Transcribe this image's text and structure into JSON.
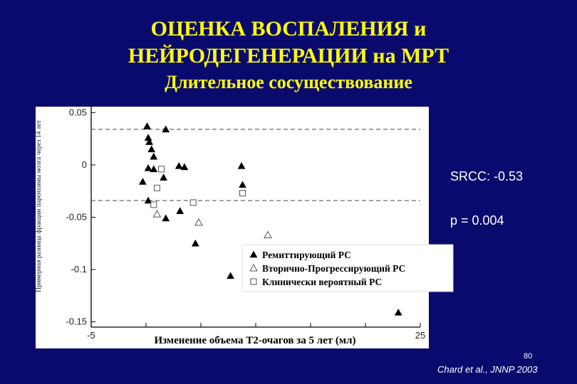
{
  "slide": {
    "title_line1": "ОЦЕНКА ВОСПАЛЕНИЯ и",
    "title_line2": "НЕЙРОДЕГЕНЕРАЦИИ на МРТ",
    "subtitle": "Длительное сосуществование",
    "srcc": "SRCC: -0.53",
    "p_value": "p = 0.004",
    "page_number": "80",
    "citation": "Chard et al., JNNP 2003",
    "background_color": "#0a0a6e",
    "title_color": "#ffff00"
  },
  "chart_data": {
    "type": "scatter",
    "xlabel": "Изменение объема Т2-очагов за 5 лет (мл)",
    "ylabel": "Примерная разница фракции паренхимы мозга через 14 лет",
    "xlim": [
      -5,
      25
    ],
    "ylim": [
      -0.155,
      0.055
    ],
    "xticks": [
      "-5",
      "0",
      "5",
      "10",
      "15",
      "20",
      "25"
    ],
    "xtick_values": [
      -5,
      0,
      5,
      10,
      15,
      20,
      25
    ],
    "yticks": [
      "0.05",
      "0",
      "-0.05",
      "-0.1",
      "-0.15"
    ],
    "ytick_values": [
      0.05,
      0,
      -0.05,
      -0.1,
      -0.15
    ],
    "reference_lines_y": [
      0.034,
      -0.034
    ],
    "reference_line_style": "dashed",
    "legend_position": "lower-right",
    "series": [
      {
        "name": "Ремиттирующий РС",
        "marker": "filled-triangle",
        "color": "#000000",
        "points": [
          {
            "x": 0.1,
            "y": 0.037
          },
          {
            "x": 0.2,
            "y": 0.026
          },
          {
            "x": 0.3,
            "y": 0.022
          },
          {
            "x": 0.5,
            "y": 0.015
          },
          {
            "x": 0.7,
            "y": 0.008
          },
          {
            "x": 1.8,
            "y": 0.034
          },
          {
            "x": 0.2,
            "y": -0.003
          },
          {
            "x": 0.7,
            "y": -0.004
          },
          {
            "x": -0.3,
            "y": -0.016
          },
          {
            "x": 1.6,
            "y": -0.012
          },
          {
            "x": 0.2,
            "y": -0.034
          },
          {
            "x": 1.8,
            "y": -0.051
          },
          {
            "x": 3.0,
            "y": -0.001
          },
          {
            "x": 3.5,
            "y": -0.002
          },
          {
            "x": 3.1,
            "y": -0.044
          },
          {
            "x": 4.5,
            "y": -0.075
          },
          {
            "x": 7.7,
            "y": -0.106
          },
          {
            "x": 8.7,
            "y": -0.001
          },
          {
            "x": 8.8,
            "y": -0.019
          },
          {
            "x": 23.0,
            "y": -0.141
          }
        ]
      },
      {
        "name": "Вторично-Прогрессирующий РС",
        "marker": "open-triangle",
        "color": "#555555",
        "points": [
          {
            "x": 1.0,
            "y": -0.047
          },
          {
            "x": 4.8,
            "y": -0.055
          },
          {
            "x": 11.1,
            "y": -0.067
          }
        ]
      },
      {
        "name": "Клинически вероятный РС",
        "marker": "open-square",
        "color": "#555555",
        "points": [
          {
            "x": 1.4,
            "y": -0.004
          },
          {
            "x": 1.0,
            "y": -0.022
          },
          {
            "x": 0.7,
            "y": -0.038
          },
          {
            "x": 4.3,
            "y": -0.036
          },
          {
            "x": 8.8,
            "y": -0.027
          }
        ]
      }
    ]
  }
}
